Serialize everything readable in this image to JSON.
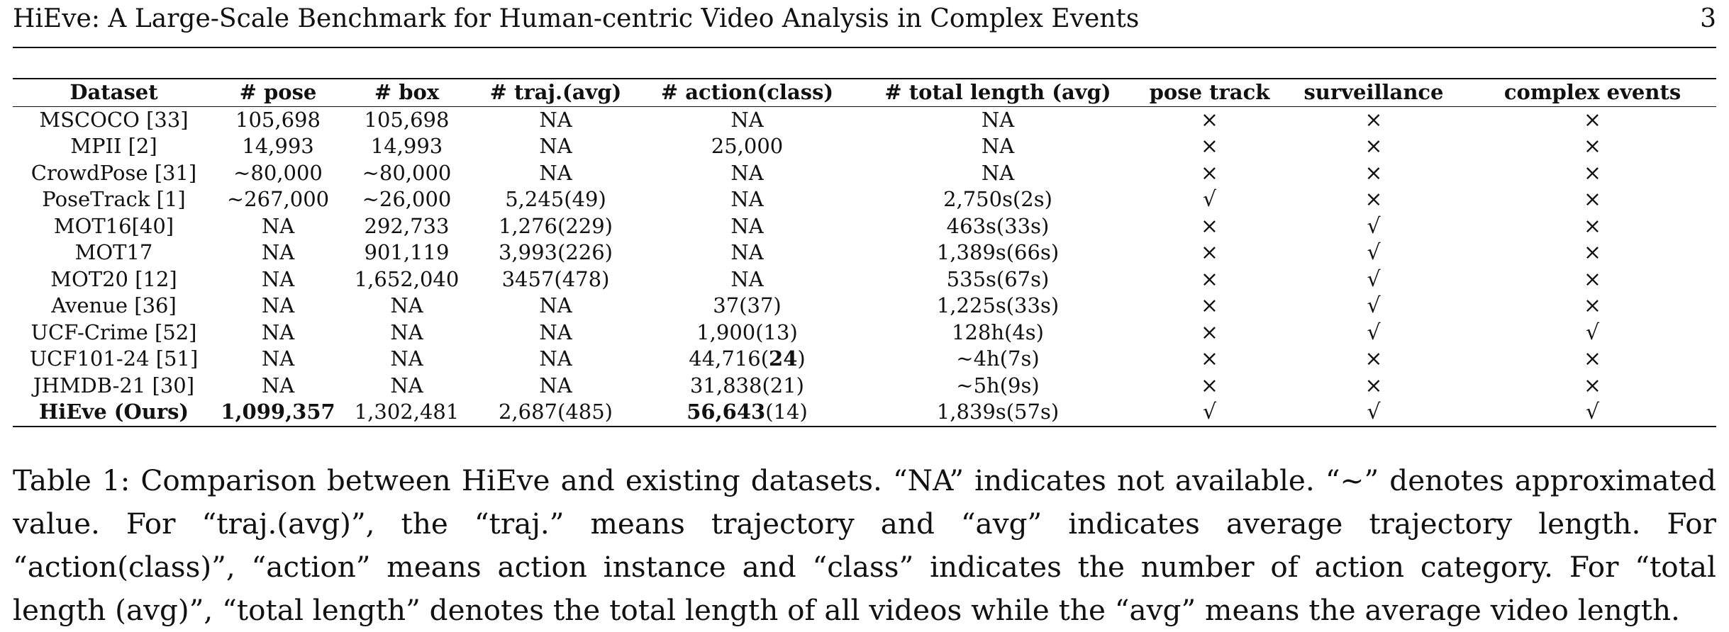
{
  "header": {
    "title": "HiEve: A Large-Scale Benchmark for Human-centric Video Analysis in Complex Events",
    "page_number": "3"
  },
  "table": {
    "columns": [
      "Dataset",
      "# pose",
      "# box",
      "# traj.(avg)",
      "# action(class)",
      "# total length (avg)",
      "pose track",
      "surveillance",
      "complex events"
    ],
    "rows": [
      {
        "dataset": "MSCOCO [33]",
        "pose": "105,698",
        "box": "105,698",
        "traj": "NA",
        "action_pre": "NA",
        "action_bold": "",
        "action_post": "",
        "length": "NA",
        "pose_track": "×",
        "surveillance": "×",
        "complex_events": "×"
      },
      {
        "dataset": "MPII [2]",
        "pose": "14,993",
        "box": "14,993",
        "traj": "NA",
        "action_pre": "25,000",
        "action_bold": "",
        "action_post": "",
        "length": "NA",
        "pose_track": "×",
        "surveillance": "×",
        "complex_events": "×"
      },
      {
        "dataset": "CrowdPose [31]",
        "pose": "~80,000",
        "box": "~80,000",
        "traj": "NA",
        "action_pre": "NA",
        "action_bold": "",
        "action_post": "",
        "length": "NA",
        "pose_track": "×",
        "surveillance": "×",
        "complex_events": "×"
      },
      {
        "dataset": "PoseTrack [1]",
        "pose": "~267,000",
        "box": "~26,000",
        "traj": "5,245(49)",
        "action_pre": "NA",
        "action_bold": "",
        "action_post": "",
        "length": "2,750s(2s)",
        "pose_track": "√",
        "surveillance": "×",
        "complex_events": "×"
      },
      {
        "dataset": "MOT16[40]",
        "pose": "NA",
        "box": "292,733",
        "traj": "1,276(229)",
        "action_pre": "NA",
        "action_bold": "",
        "action_post": "",
        "length": "463s(33s)",
        "pose_track": "×",
        "surveillance": "√",
        "complex_events": "×"
      },
      {
        "dataset": "MOT17",
        "pose": "NA",
        "box": "901,119",
        "traj": "3,993(226)",
        "action_pre": "NA",
        "action_bold": "",
        "action_post": "",
        "length": "1,389s(66s)",
        "pose_track": "×",
        "surveillance": "√",
        "complex_events": "×"
      },
      {
        "dataset": "MOT20 [12]",
        "pose": "NA",
        "box": "1,652,040",
        "traj": "3457(478)",
        "action_pre": "NA",
        "action_bold": "",
        "action_post": "",
        "length": "535s(67s)",
        "pose_track": "×",
        "surveillance": "√",
        "complex_events": "×"
      },
      {
        "dataset": "Avenue [36]",
        "pose": "NA",
        "box": "NA",
        "traj": "NA",
        "action_pre": "37(37)",
        "action_bold": "",
        "action_post": "",
        "length": "1,225s(33s)",
        "pose_track": "×",
        "surveillance": "√",
        "complex_events": "×"
      },
      {
        "dataset": "UCF-Crime [52]",
        "pose": "NA",
        "box": "NA",
        "traj": "NA",
        "action_pre": "1,900(13)",
        "action_bold": "",
        "action_post": "",
        "length": "128h(4s)",
        "pose_track": "×",
        "surveillance": "√",
        "complex_events": "√"
      },
      {
        "dataset": "UCF101-24 [51]",
        "pose": "NA",
        "box": "NA",
        "traj": "NA",
        "action_pre": "44,716(",
        "action_bold": "24",
        "action_post": ")",
        "length": "~4h(7s)",
        "pose_track": "×",
        "surveillance": "×",
        "complex_events": "×"
      },
      {
        "dataset": "JHMDB-21 [30]",
        "pose": "NA",
        "box": "NA",
        "traj": "NA",
        "action_pre": "31,838(21)",
        "action_bold": "",
        "action_post": "",
        "length": "~5h(9s)",
        "pose_track": "×",
        "surveillance": "×",
        "complex_events": "×"
      },
      {
        "dataset": "HiEve (Ours)",
        "pose": "1,099,357",
        "box": "1,302,481",
        "traj": "2,687(485)",
        "action_pre": "",
        "action_bold": "56,643",
        "action_post": "(14)",
        "length": "1,839s(57s)",
        "pose_track": "√",
        "surveillance": "√",
        "complex_events": "√"
      }
    ]
  },
  "caption": {
    "text": "Table 1: Comparison between HiEve and existing datasets. “NA” indicates not available. “~” denotes approximated value. For “traj.(avg)”, the “traj.” means trajectory and “avg” indicates average trajectory length. For “action(class)”, “action” means action instance and “class” indicates the number of action category. For “total length (avg)”, “total length” denotes the total length of all videos while the “avg” means the average video length."
  }
}
